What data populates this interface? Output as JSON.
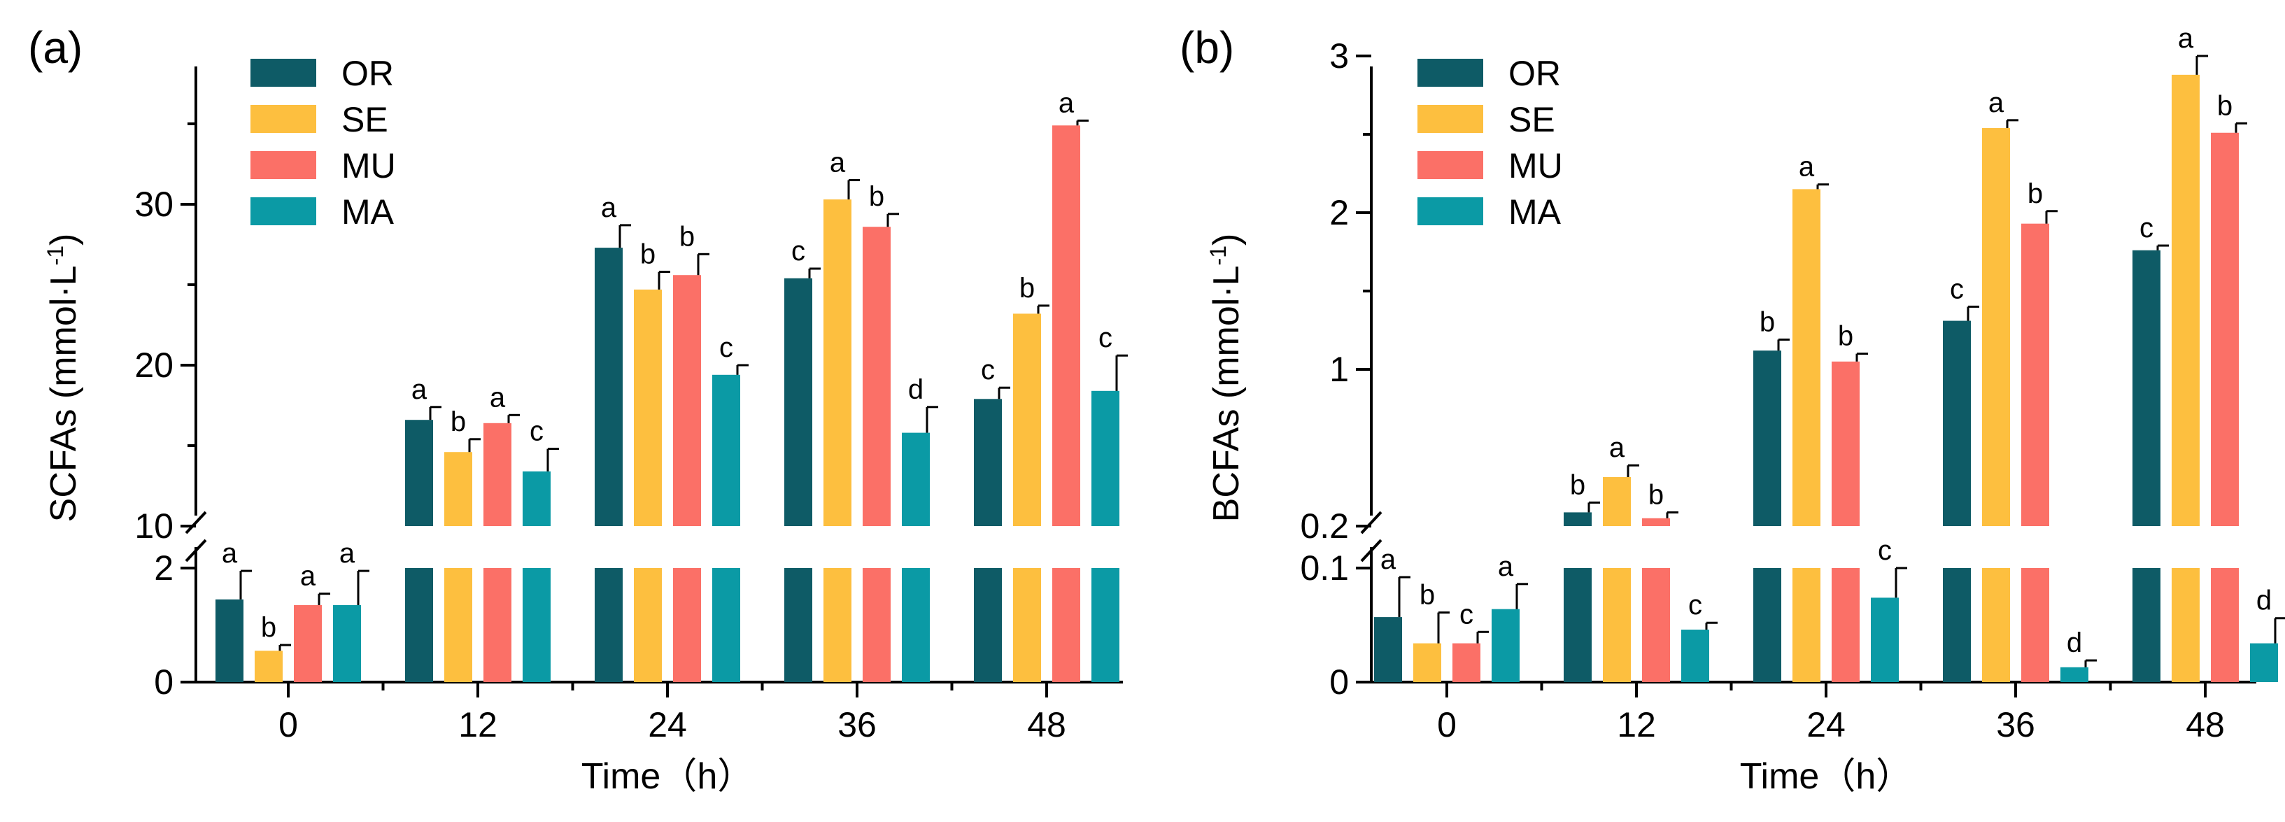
{
  "colors": {
    "OR": "#0e5b66",
    "SE": "#fdbf3f",
    "MU": "#fb7067",
    "MA": "#0b9aa5"
  },
  "chart_data": [
    {
      "type": "bar",
      "panel_label": "(a)",
      "xlabel": "Time（h）",
      "ylabel": "SCFAs (mmol·L",
      "ylabel_sup": "-1",
      "ylabel_close": ")",
      "categories": [
        "0",
        "12",
        "24",
        "36",
        "48"
      ],
      "y_break": {
        "lower_range": [
          0,
          2
        ],
        "upper_range": [
          10,
          36
        ]
      },
      "lower_ticks": [
        "0",
        "2"
      ],
      "upper_ticks": [
        "10",
        "20",
        "30"
      ],
      "legend": [
        "OR",
        "SE",
        "MU",
        "MA"
      ],
      "legend_position": "top-left",
      "series": [
        {
          "name": "OR",
          "values": [
            1.45,
            16.6,
            27.3,
            25.4,
            17.9
          ],
          "errors": [
            0.5,
            0.8,
            1.4,
            0.6,
            0.7
          ],
          "letters": [
            "a",
            "a",
            "a",
            "c",
            "c"
          ]
        },
        {
          "name": "SE",
          "values": [
            0.55,
            14.6,
            24.7,
            30.3,
            23.2
          ],
          "errors": [
            0.1,
            0.8,
            1.1,
            1.2,
            0.5
          ],
          "letters": [
            "b",
            "b",
            "b",
            "a",
            "b"
          ]
        },
        {
          "name": "MU",
          "values": [
            1.35,
            16.4,
            25.6,
            28.6,
            34.9
          ],
          "errors": [
            0.2,
            0.5,
            1.3,
            0.8,
            0.3
          ],
          "letters": [
            "a",
            "a",
            "b",
            "b",
            "a"
          ]
        },
        {
          "name": "MA",
          "values": [
            1.35,
            13.4,
            19.4,
            15.8,
            18.4
          ],
          "errors": [
            0.6,
            1.4,
            0.6,
            1.6,
            2.2
          ],
          "letters": [
            "a",
            "c",
            "c",
            "d",
            "c"
          ]
        }
      ]
    },
    {
      "type": "bar",
      "panel_label": "(b)",
      "xlabel": "Time（h）",
      "ylabel": "BCFAs (mmol·L",
      "ylabel_sup": "-1",
      "ylabel_close": ")",
      "categories": [
        "0",
        "12",
        "24",
        "36",
        "48"
      ],
      "y_break": {
        "lower_range": [
          0,
          0.1
        ],
        "upper_range": [
          0.2,
          3
        ]
      },
      "lower_ticks": [
        "0",
        "0.1"
      ],
      "upper_ticks": [
        "0.2",
        "1",
        "2",
        "3"
      ],
      "legend": [
        "OR",
        "SE",
        "MU",
        "MA"
      ],
      "legend_position": "top-left",
      "series": [
        {
          "name": "OR",
          "values": [
            0.057,
            0.27,
            1.12,
            1.31,
            1.76
          ],
          "errors": [
            0.035,
            0.05,
            0.07,
            0.09,
            0.03
          ],
          "letters": [
            "a",
            "b",
            "b",
            "c",
            "c"
          ]
        },
        {
          "name": "SE",
          "values": [
            0.034,
            0.45,
            2.15,
            2.54,
            2.88
          ],
          "errors": [
            0.027,
            0.06,
            0.03,
            0.05,
            0.12
          ],
          "letters": [
            "b",
            "a",
            "a",
            "a",
            "a"
          ]
        },
        {
          "name": "MU",
          "values": [
            0.034,
            0.24,
            1.05,
            1.93,
            2.51
          ],
          "errors": [
            0.01,
            0.03,
            0.05,
            0.08,
            0.06
          ],
          "letters": [
            "c",
            "b",
            "b",
            "b",
            "b"
          ]
        },
        {
          "name": "MA",
          "values": [
            0.064,
            0.046,
            0.074,
            0.013,
            0.034
          ],
          "errors": [
            0.022,
            0.006,
            0.026,
            0.006,
            0.022
          ],
          "letters": [
            "a",
            "c",
            "c",
            "d",
            "d"
          ]
        }
      ]
    }
  ]
}
